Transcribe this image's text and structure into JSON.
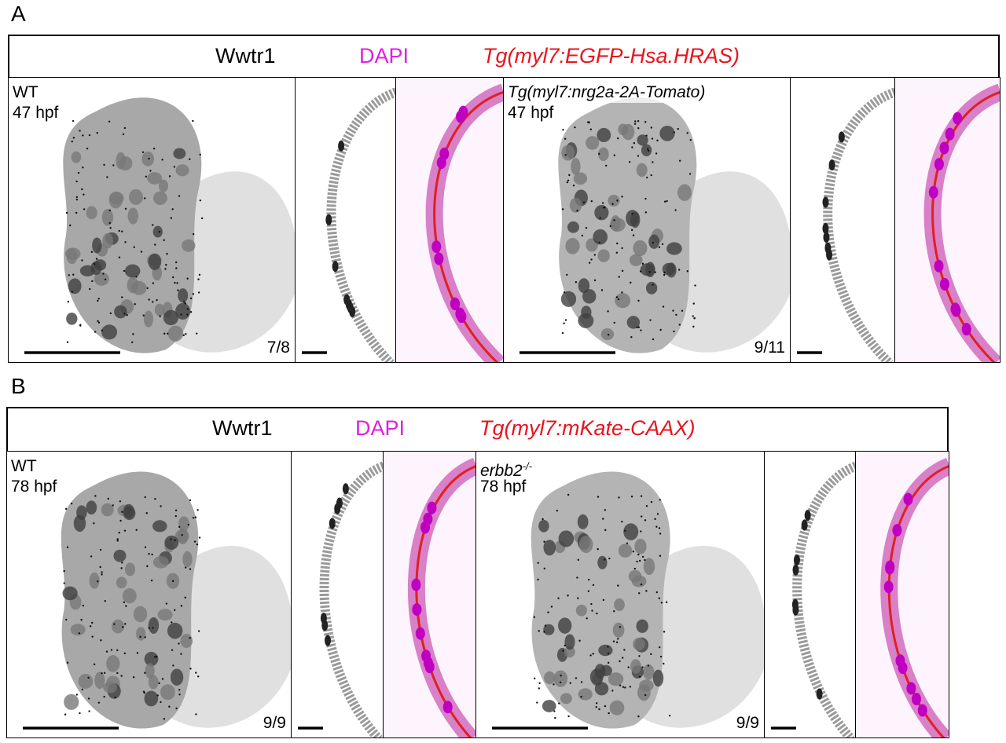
{
  "panels": [
    {
      "label": "A",
      "header": {
        "stains": [
          {
            "text": "Wwtr1",
            "color": "#000000"
          },
          {
            "text": "DAPI",
            "color": "#e020e0"
          },
          {
            "text": "Tg(myl7:EGFP-Hsa.HRAS)",
            "color": "#e8141e"
          }
        ]
      },
      "conditions": [
        {
          "genotype": "WT",
          "stage": "47 hpf",
          "ratio": "7/8"
        },
        {
          "genotype": "Tg(myl7:nrg2a-2A-Tomato)",
          "stage": "47 hpf",
          "ratio": "9/11"
        }
      ]
    },
    {
      "label": "B",
      "header": {
        "stains": [
          {
            "text": "Wwtr1",
            "color": "#000000"
          },
          {
            "text": "DAPI",
            "color": "#e020e0"
          },
          {
            "text": "Tg(myl7:mKate-CAAX)",
            "color": "#e8141e"
          }
        ]
      },
      "conditions": [
        {
          "genotype": "WT",
          "stage": "78 hpf",
          "ratio": "9/9"
        },
        {
          "genotype": "erbb2",
          "genotype_superscript": "-/-",
          "stage": "78 hpf",
          "ratio": "9/9"
        }
      ]
    }
  ]
}
